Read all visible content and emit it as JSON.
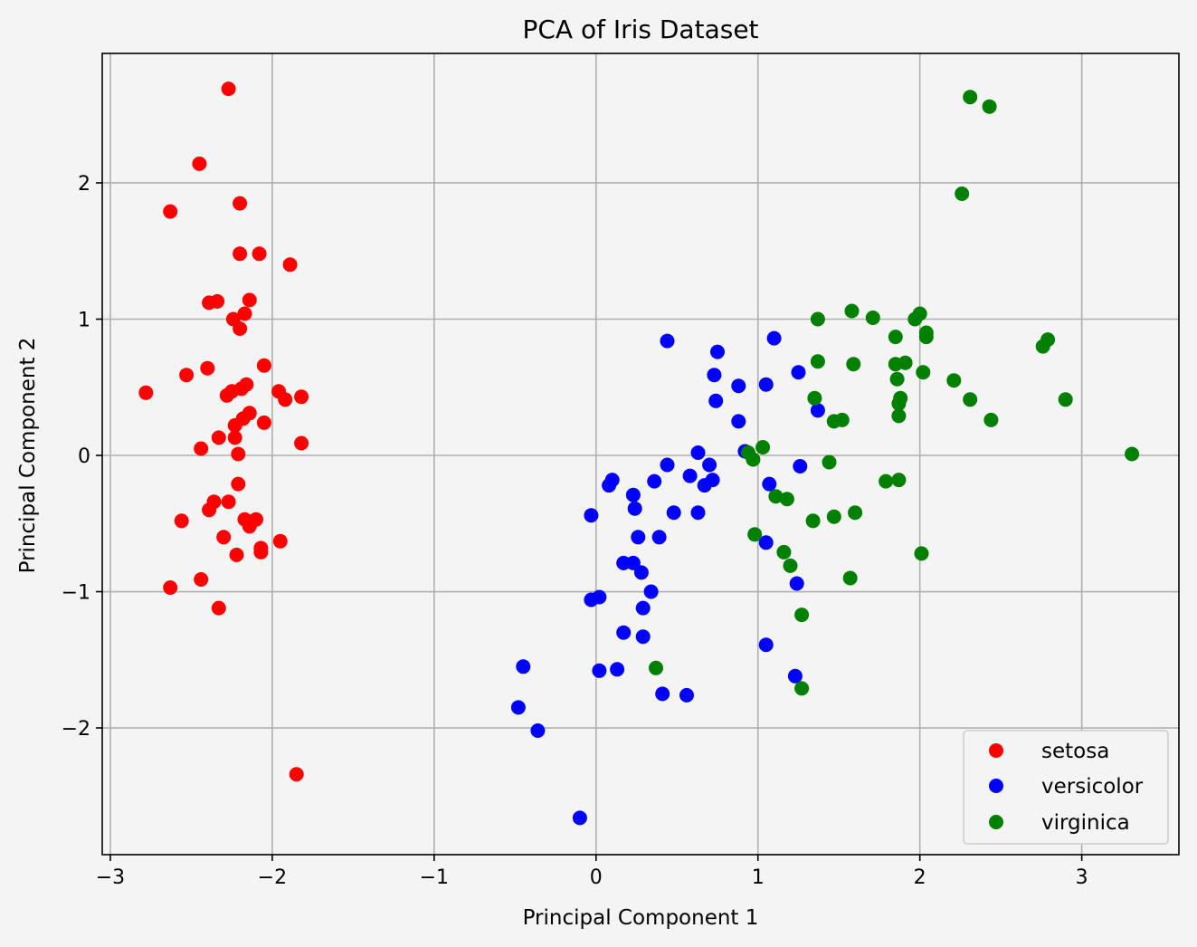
{
  "chart_data": {
    "type": "scatter",
    "title": "PCA of Iris Dataset",
    "xlabel": "Principal Component 1",
    "ylabel": "Principal Component 2",
    "xlim": [
      -3.05,
      3.6
    ],
    "ylim": [
      -2.93,
      2.95
    ],
    "xticks": [
      -3,
      -2,
      -1,
      0,
      1,
      2,
      3
    ],
    "xtick_labels": [
      "−3",
      "−2",
      "−1",
      "0",
      "1",
      "2",
      "3"
    ],
    "yticks": [
      -2,
      -1,
      0,
      1,
      2
    ],
    "ytick_labels": [
      "−2",
      "−1",
      "0",
      "1",
      "2"
    ],
    "grid": true,
    "legend_position": "lower-right",
    "series": [
      {
        "name": "setosa",
        "color": "#ff0000",
        "points": [
          [
            -2.27,
            2.69
          ],
          [
            -2.45,
            2.14
          ],
          [
            -2.63,
            1.79
          ],
          [
            -2.2,
            1.85
          ],
          [
            -2.2,
            1.48
          ],
          [
            -2.08,
            1.48
          ],
          [
            -1.89,
            1.4
          ],
          [
            -2.39,
            1.12
          ],
          [
            -2.34,
            1.13
          ],
          [
            -2.14,
            1.14
          ],
          [
            -2.17,
            1.04
          ],
          [
            -2.24,
            1.0
          ],
          [
            -2.2,
            0.93
          ],
          [
            -2.05,
            0.66
          ],
          [
            -2.53,
            0.59
          ],
          [
            -2.4,
            0.64
          ],
          [
            -2.78,
            0.46
          ],
          [
            -2.16,
            0.52
          ],
          [
            -2.19,
            0.49
          ],
          [
            -2.25,
            0.47
          ],
          [
            -2.28,
            0.44
          ],
          [
            -1.96,
            0.47
          ],
          [
            -1.92,
            0.41
          ],
          [
            -1.82,
            0.43
          ],
          [
            -2.14,
            0.31
          ],
          [
            -2.18,
            0.27
          ],
          [
            -2.23,
            0.22
          ],
          [
            -2.05,
            0.24
          ],
          [
            -2.33,
            0.13
          ],
          [
            -2.23,
            0.13
          ],
          [
            -1.82,
            0.09
          ],
          [
            -2.44,
            0.05
          ],
          [
            -2.21,
            0.01
          ],
          [
            -2.21,
            -0.21
          ],
          [
            -2.36,
            -0.34
          ],
          [
            -2.27,
            -0.34
          ],
          [
            -2.39,
            -0.4
          ],
          [
            -2.56,
            -0.48
          ],
          [
            -2.17,
            -0.47
          ],
          [
            -2.1,
            -0.47
          ],
          [
            -2.14,
            -0.52
          ],
          [
            -2.3,
            -0.6
          ],
          [
            -1.95,
            -0.63
          ],
          [
            -2.07,
            -0.68
          ],
          [
            -2.07,
            -0.71
          ],
          [
            -2.22,
            -0.73
          ],
          [
            -2.44,
            -0.91
          ],
          [
            -2.63,
            -0.97
          ],
          [
            -2.33,
            -1.12
          ],
          [
            -1.85,
            -2.34
          ]
        ]
      },
      {
        "name": "versicolor",
        "color": "#0000ff",
        "points": [
          [
            0.44,
            0.84
          ],
          [
            1.1,
            0.86
          ],
          [
            0.75,
            0.76
          ],
          [
            0.73,
            0.59
          ],
          [
            0.88,
            0.51
          ],
          [
            1.05,
            0.52
          ],
          [
            1.25,
            0.61
          ],
          [
            0.74,
            0.4
          ],
          [
            1.37,
            0.33
          ],
          [
            0.88,
            0.25
          ],
          [
            0.63,
            0.02
          ],
          [
            0.92,
            0.03
          ],
          [
            0.7,
            -0.07
          ],
          [
            0.44,
            -0.07
          ],
          [
            1.26,
            -0.08
          ],
          [
            0.58,
            -0.15
          ],
          [
            0.72,
            -0.18
          ],
          [
            0.67,
            -0.22
          ],
          [
            1.07,
            -0.21
          ],
          [
            0.1,
            -0.18
          ],
          [
            0.08,
            -0.22
          ],
          [
            0.36,
            -0.19
          ],
          [
            0.23,
            -0.29
          ],
          [
            0.24,
            -0.39
          ],
          [
            -0.03,
            -0.44
          ],
          [
            0.48,
            -0.42
          ],
          [
            0.63,
            -0.42
          ],
          [
            0.39,
            -0.6
          ],
          [
            0.26,
            -0.6
          ],
          [
            1.05,
            -0.64
          ],
          [
            0.17,
            -0.79
          ],
          [
            0.23,
            -0.79
          ],
          [
            0.28,
            -0.86
          ],
          [
            1.24,
            -0.94
          ],
          [
            0.34,
            -1.0
          ],
          [
            -0.03,
            -1.06
          ],
          [
            0.02,
            -1.04
          ],
          [
            0.29,
            -1.12
          ],
          [
            0.17,
            -1.3
          ],
          [
            0.29,
            -1.33
          ],
          [
            1.05,
            -1.39
          ],
          [
            -0.45,
            -1.55
          ],
          [
            0.02,
            -1.58
          ],
          [
            0.13,
            -1.57
          ],
          [
            1.23,
            -1.62
          ],
          [
            0.41,
            -1.75
          ],
          [
            0.56,
            -1.76
          ],
          [
            -0.48,
            -1.85
          ],
          [
            -0.36,
            -2.02
          ],
          [
            -0.1,
            -2.66
          ]
        ]
      },
      {
        "name": "virginica",
        "color": "#008000",
        "points": [
          [
            2.31,
            2.63
          ],
          [
            2.43,
            2.56
          ],
          [
            2.26,
            1.92
          ],
          [
            1.58,
            1.06
          ],
          [
            2.0,
            1.04
          ],
          [
            1.37,
            1.0
          ],
          [
            1.71,
            1.01
          ],
          [
            1.97,
            1.0
          ],
          [
            2.04,
            0.9
          ],
          [
            2.04,
            0.87
          ],
          [
            2.79,
            0.85
          ],
          [
            2.76,
            0.8
          ],
          [
            1.85,
            0.87
          ],
          [
            1.37,
            0.69
          ],
          [
            1.59,
            0.67
          ],
          [
            1.85,
            0.67
          ],
          [
            1.91,
            0.68
          ],
          [
            2.02,
            0.61
          ],
          [
            1.86,
            0.56
          ],
          [
            2.21,
            0.55
          ],
          [
            1.35,
            0.42
          ],
          [
            1.88,
            0.42
          ],
          [
            2.31,
            0.41
          ],
          [
            2.9,
            0.41
          ],
          [
            1.87,
            0.38
          ],
          [
            1.87,
            0.29
          ],
          [
            1.52,
            0.26
          ],
          [
            1.47,
            0.25
          ],
          [
            2.44,
            0.26
          ],
          [
            1.03,
            0.06
          ],
          [
            0.94,
            0.02
          ],
          [
            0.97,
            -0.03
          ],
          [
            3.31,
            0.01
          ],
          [
            1.44,
            -0.05
          ],
          [
            1.79,
            -0.19
          ],
          [
            1.87,
            -0.18
          ],
          [
            1.11,
            -0.3
          ],
          [
            1.18,
            -0.32
          ],
          [
            1.6,
            -0.42
          ],
          [
            1.47,
            -0.45
          ],
          [
            1.34,
            -0.48
          ],
          [
            0.98,
            -0.58
          ],
          [
            1.16,
            -0.71
          ],
          [
            2.01,
            -0.72
          ],
          [
            1.2,
            -0.81
          ],
          [
            1.57,
            -0.9
          ],
          [
            1.27,
            -1.17
          ],
          [
            0.37,
            -1.56
          ],
          [
            1.27,
            -1.71
          ]
        ]
      }
    ]
  }
}
